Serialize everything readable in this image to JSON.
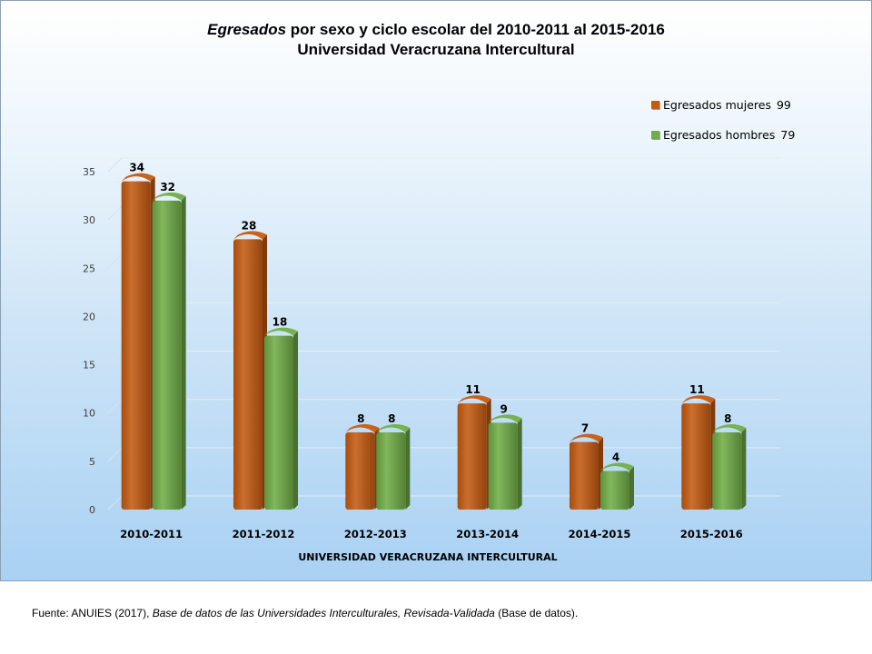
{
  "chart_data": {
    "type": "bar",
    "title_italic": "Egresados",
    "title_rest": "por sexo y ciclo escolar del 2010-2011 al 2015-2016",
    "subtitle": "Universidad Veracruzana Intercultural",
    "xlabel": "UNIVERSIDAD VERACRUZANA INTERCULTURAL",
    "ylabel": "",
    "ylim": [
      0,
      35
    ],
    "yticks": [
      0,
      5,
      10,
      15,
      20,
      25,
      30,
      35
    ],
    "grid": true,
    "legend_position": "top-right",
    "categories": [
      "2010-2011",
      "2011-2012",
      "2012-2013",
      "2013-2014",
      "2014-2015",
      "2015-2016"
    ],
    "series": [
      {
        "name": "Egresados mujeres",
        "total": "99",
        "color": "#c55a11",
        "values": [
          34,
          28,
          8,
          11,
          7,
          11
        ]
      },
      {
        "name": "Egresados hombres",
        "total": "79",
        "color": "#70ad47",
        "values": [
          32,
          18,
          8,
          9,
          4,
          8
        ]
      }
    ]
  },
  "source": {
    "prefix": "Fuente: ANUIES (2017),",
    "italic": "Base de datos de las Universidades Interculturales, Revisada-Validada",
    "suffix": "(Base de datos)."
  }
}
